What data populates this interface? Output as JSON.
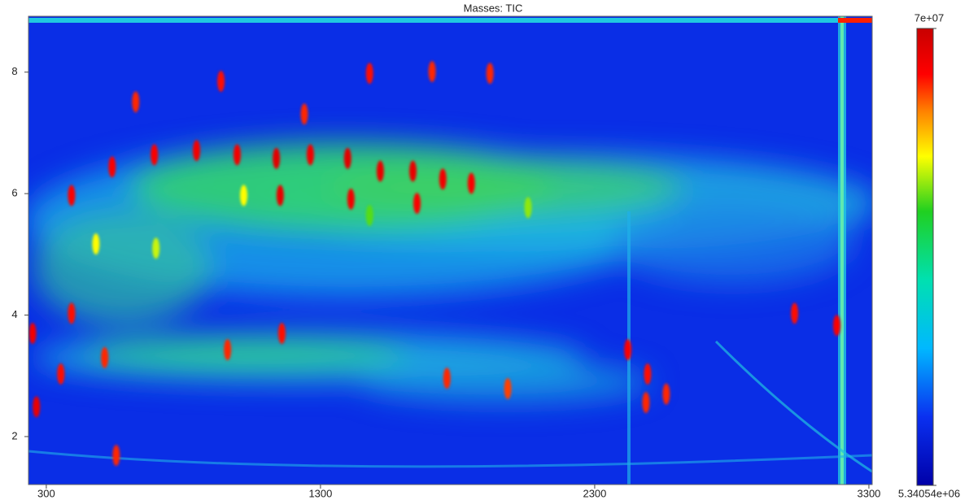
{
  "chart_data": {
    "type": "heatmap",
    "title": "Masses: TIC",
    "xlim": [
      235,
      3312
    ],
    "xticks": [
      300,
      1300,
      2300,
      3300
    ],
    "ylim": [
      1.21,
      8.92
    ],
    "yticks": [
      2,
      4,
      6,
      8
    ],
    "zlim": [
      5340540,
      70000000
    ],
    "zticks": [
      {
        "value": 70000000,
        "label": "7e+07"
      },
      {
        "value": 5340540,
        "label": "5.34054e+06"
      }
    ],
    "colormap": [
      [
        0,
        "#0000a8"
      ],
      [
        0.15,
        "#0a30f0"
      ],
      [
        0.3,
        "#00b8ff"
      ],
      [
        0.45,
        "#00e0b0"
      ],
      [
        0.6,
        "#20d020"
      ],
      [
        0.72,
        "#ffff00"
      ],
      [
        0.82,
        "#ff8000"
      ],
      [
        0.9,
        "#ff0000"
      ],
      [
        1,
        "#c80000"
      ]
    ],
    "peaks": {
      "x": [
        1139,
        1153,
        1263,
        1399,
        1411,
        1518,
        1637,
        1652,
        1746,
        1850,
        996,
        848,
        694,
        540,
        392,
        937,
        1479,
        1707,
        1918,
        2421,
        2493,
        3029,
        3183,
        264,
        250,
        392,
        353,
        555,
        1159,
        961,
        1761,
        1983,
        2487,
        2561,
        626,
        1241,
        513,
        1020,
        700,
        481,
        2057,
        1479
      ],
      "y": [
        6.58,
        5.97,
        6.64,
        6.58,
        5.91,
        6.37,
        6.37,
        5.84,
        6.24,
        6.17,
        6.64,
        6.71,
        6.64,
        6.44,
        5.97,
        7.85,
        7.98,
        8.01,
        7.98,
        3.43,
        3.03,
        4.03,
        3.83,
        2.49,
        3.7,
        4.03,
        3.03,
        1.69,
        3.7,
        3.43,
        2.96,
        2.79,
        2.56,
        2.7,
        7.51,
        7.31,
        3.3,
        5.97,
        5.1,
        5.17,
        5.77,
        5.64
      ],
      "values": [
        67000000,
        66000000,
        65000000,
        67000000,
        65000000,
        66000000,
        66000000,
        64000000,
        65000000,
        64000000,
        65000000,
        65000000,
        64000000,
        64000000,
        64000000,
        63000000,
        63000000,
        62000000,
        62000000,
        64000000,
        63000000,
        63000000,
        64000000,
        66000000,
        65000000,
        63000000,
        63000000,
        62000000,
        63000000,
        62000000,
        62000000,
        61000000,
        62000000,
        62000000,
        62000000,
        62000000,
        62000000,
        52000000,
        50000000,
        52000000,
        48000000,
        46000000
      ]
    }
  }
}
